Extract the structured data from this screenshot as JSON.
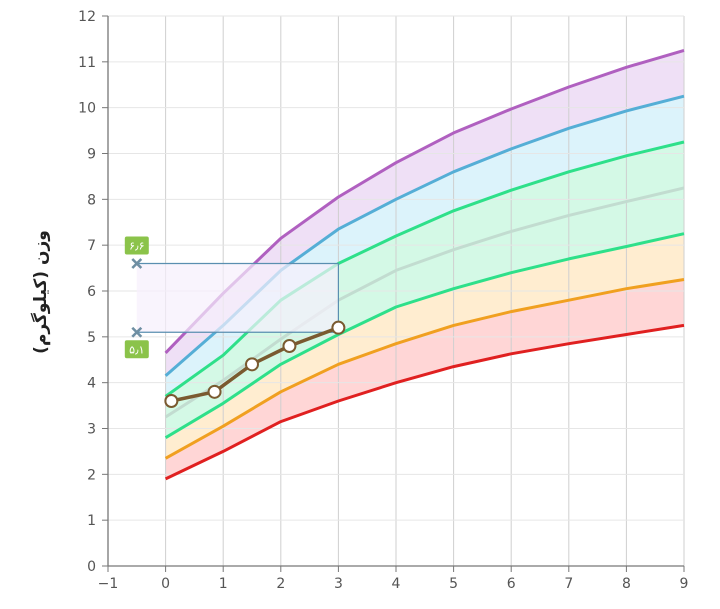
{
  "chart_data": {
    "type": "line",
    "title": "",
    "xlabel": "",
    "ylabel": "وزن (کیلوگرم)",
    "xlim": [
      -1,
      9
    ],
    "ylim": [
      0,
      12
    ],
    "x_ticks": [
      -1,
      0,
      1,
      2,
      3,
      4,
      5,
      6,
      7,
      8,
      9
    ],
    "y_ticks": [
      0,
      1,
      2,
      3,
      4,
      5,
      6,
      7,
      8,
      9,
      10,
      11,
      12
    ],
    "x_tick_labels": [
      "−1",
      "0",
      "1",
      "2",
      "3",
      "4",
      "5",
      "6",
      "7",
      "8",
      "9"
    ],
    "y_tick_labels": [
      "0",
      "1",
      "2",
      "3",
      "4",
      "5",
      "6",
      "7",
      "8",
      "9",
      "10",
      "11",
      "12"
    ],
    "grid": true,
    "percentile_x": [
      0,
      1,
      2,
      3,
      4,
      5,
      6,
      7,
      8,
      9
    ],
    "series": [
      {
        "color": "#e02020",
        "fill": "#ffd6d6",
        "values": [
          1.9,
          2.5,
          3.15,
          3.6,
          4.0,
          4.35,
          4.63,
          4.85,
          5.05,
          5.25
        ]
      },
      {
        "color": "#f0a020",
        "fill": "#ffedd0",
        "values": [
          2.35,
          3.05,
          3.8,
          4.4,
          4.85,
          5.25,
          5.55,
          5.8,
          6.05,
          6.25
        ]
      },
      {
        "color": "#2ee08a",
        "fill": "#d4f9e6",
        "values": [
          2.8,
          3.55,
          4.4,
          5.05,
          5.65,
          6.05,
          6.4,
          6.7,
          6.97,
          7.25
        ]
      },
      {
        "color": "#c2dcd0",
        "fill": "#d4f9e6",
        "values": [
          3.25,
          4.05,
          4.95,
          5.8,
          6.45,
          6.9,
          7.3,
          7.65,
          7.95,
          8.25
        ]
      },
      {
        "color": "#2ee08a",
        "fill": "#dcf3fb",
        "values": [
          3.7,
          4.6,
          5.8,
          6.6,
          7.2,
          7.75,
          8.2,
          8.6,
          8.95,
          9.25
        ]
      },
      {
        "color": "#55aed6",
        "fill": "#efe0f6",
        "values": [
          4.15,
          5.25,
          6.45,
          7.35,
          8.0,
          8.6,
          9.1,
          9.55,
          9.93,
          10.25
        ]
      },
      {
        "color": "#b060c0",
        "fill": null,
        "values": [
          4.65,
          5.95,
          7.15,
          8.05,
          8.8,
          9.45,
          9.97,
          10.45,
          10.88,
          11.25
        ]
      }
    ],
    "child": {
      "color": "#7a5a30",
      "points": [
        {
          "x": 0.1,
          "y": 3.6
        },
        {
          "x": 0.85,
          "y": 3.8
        },
        {
          "x": 1.5,
          "y": 4.4
        },
        {
          "x": 2.15,
          "y": 4.8
        },
        {
          "x": 3.0,
          "y": 5.2
        }
      ]
    },
    "range": {
      "x_marker": -0.5,
      "x_end": 3,
      "upper": 6.6,
      "lower": 5.1,
      "upper_label": "۶٫۶",
      "lower_label": "۵٫۱",
      "marker_color": "#8bc34a",
      "band_fill": "#f7f0fc",
      "line_color": "#5a8fb0"
    }
  }
}
